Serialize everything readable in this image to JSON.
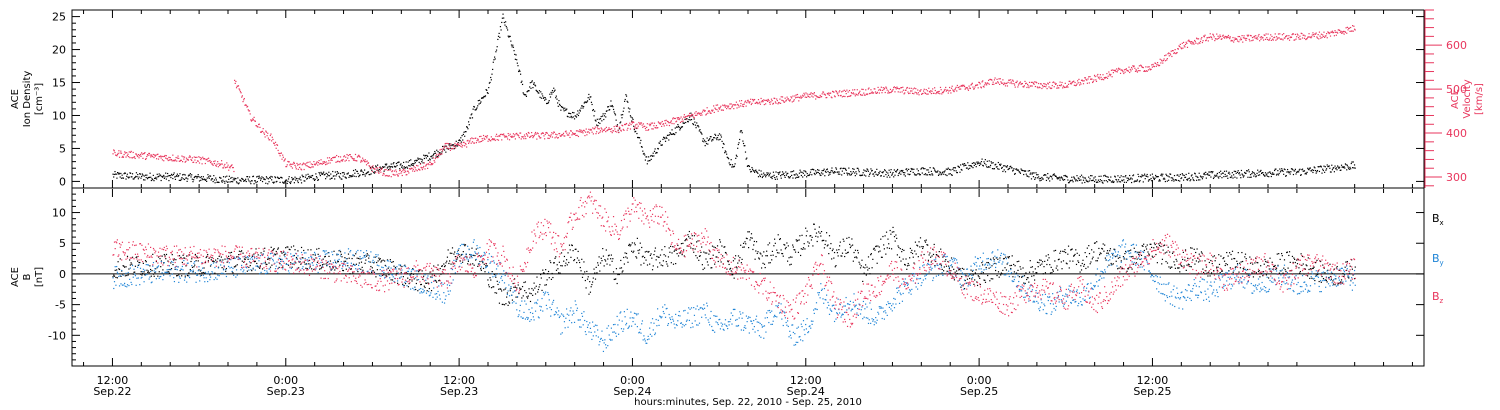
{
  "chart_data": [
    {
      "type": "scatter",
      "panel": "top",
      "ylabel_left": [
        "ACE",
        "Ion Density",
        "[cm⁻³]"
      ],
      "ylabel_right": [
        "ACE",
        "Velocity",
        "[km/s]"
      ],
      "ylim_left": [
        -1,
        26
      ],
      "ylim_right": [
        275,
        680
      ],
      "yticks_left": [
        "0",
        "5",
        "10",
        "15",
        "20",
        "25"
      ],
      "yticks_right": [
        "300",
        "400",
        "500",
        "600"
      ],
      "colors": {
        "density": "#000000",
        "velocity": "#e8365d"
      },
      "series": [
        {
          "axis": "left",
          "color": "#000000",
          "t": [
            0,
            1,
            2,
            3,
            4,
            5,
            6,
            7,
            7.6,
            8,
            9,
            10,
            12,
            13,
            14,
            15,
            16,
            16.5,
            17.5,
            18.3,
            19,
            20,
            21,
            22,
            23,
            24,
            24.5,
            25,
            26,
            27,
            28,
            28.5,
            29,
            30,
            30.5,
            31,
            32,
            33,
            33.5,
            34,
            34.5,
            35,
            35.5,
            36,
            37,
            38,
            39,
            40,
            41,
            42,
            42.5,
            43,
            43.5,
            44,
            45,
            46,
            48,
            50,
            52,
            54,
            56,
            58,
            60,
            62,
            64,
            66,
            68,
            70,
            70.5,
            71,
            72,
            74,
            76,
            78,
            80,
            82,
            84,
            86
          ],
          "y": [
            1,
            0.9,
            0.8,
            0.8,
            0.8,
            0.7,
            0.6,
            0.5,
            0.3,
            0.3,
            0.3,
            0.3,
            0.3,
            0.4,
            0.8,
            1,
            1,
            1.3,
            1.5,
            2,
            2.3,
            2.5,
            3,
            4,
            5,
            6,
            8,
            11,
            14,
            25,
            18,
            13,
            15,
            12,
            14,
            11,
            10,
            13,
            9,
            10,
            12,
            8,
            13,
            9,
            3,
            6,
            8,
            10,
            6,
            7,
            4,
            2,
            8,
            2,
            1,
            1,
            1.3,
            1.6,
            1.5,
            1.3,
            1.7,
            1.5,
            3,
            2,
            0.8,
            0.5,
            0.4,
            0.5,
            0.5,
            0.6,
            0.6,
            0.7,
            1,
            1.2,
            1.4,
            1.5,
            2,
            2.5
          ]
        },
        {
          "axis": "right",
          "color": "#e8365d",
          "t": [
            0,
            2,
            4,
            6,
            7.6,
            8.4,
            8.4,
            9,
            9.5,
            10,
            10.5,
            11,
            12,
            13,
            14,
            15,
            16,
            17,
            18,
            19,
            20,
            21,
            22,
            23,
            24,
            25,
            26,
            28,
            30,
            32,
            33,
            34,
            35,
            36,
            37,
            38,
            40,
            42,
            44,
            46,
            48,
            50,
            52,
            54,
            56,
            58,
            60,
            61,
            62,
            64,
            66,
            68,
            70,
            72,
            74,
            76,
            78,
            80,
            82,
            84,
            86
          ],
          "y": [
            355,
            350,
            345,
            340,
            330,
            320,
            520,
            480,
            440,
            420,
            400,
            390,
            330,
            325,
            330,
            340,
            345,
            345,
            320,
            310,
            310,
            320,
            330,
            370,
            370,
            385,
            390,
            395,
            395,
            400,
            405,
            410,
            410,
            420,
            415,
            420,
            440,
            460,
            470,
            475,
            485,
            490,
            495,
            500,
            495,
            500,
            510,
            520,
            515,
            510,
            510,
            525,
            545,
            550,
            600,
            620,
            615,
            620,
            620,
            625,
            640
          ]
        }
      ]
    },
    {
      "type": "scatter",
      "panel": "bottom",
      "ylabel": [
        "ACE",
        "B",
        "[nT]"
      ],
      "ylim": [
        -15,
        14
      ],
      "yticks": [
        "-10",
        "-5",
        "0",
        "5",
        "10"
      ],
      "colors": {
        "Bx": "#000000",
        "By": "#1f84d6",
        "Bz": "#e8365d"
      },
      "series": [
        {
          "name": "Bx",
          "color": "#000000",
          "t": [
            0,
            2,
            4,
            6,
            8,
            10,
            12,
            14,
            16,
            18,
            19,
            20,
            21,
            22,
            23,
            24,
            25,
            26,
            27,
            28,
            29,
            30,
            31,
            32,
            33,
            34,
            35,
            36,
            37,
            38,
            39,
            40,
            41,
            42,
            43,
            44,
            45,
            46,
            47,
            48,
            49,
            50,
            51,
            52,
            53,
            54,
            55,
            56,
            57,
            58,
            59,
            60,
            61,
            62,
            63,
            64,
            65,
            66,
            67,
            68,
            69,
            70,
            71,
            72,
            73,
            74,
            75,
            76,
            77,
            78,
            79,
            80,
            81,
            82,
            83,
            84,
            85,
            86
          ],
          "y": [
            1,
            1.5,
            1.5,
            1.5,
            2,
            2.5,
            3,
            2.5,
            2,
            1.5,
            1,
            0,
            -1,
            -1,
            2,
            4,
            3,
            0,
            -4,
            -2,
            -3,
            0,
            2,
            4,
            -2,
            3,
            0,
            5,
            2,
            3,
            3,
            6,
            2,
            4,
            1,
            6,
            2,
            5,
            3,
            6,
            7,
            3,
            5,
            0,
            4,
            6,
            2,
            5,
            3,
            1,
            -1,
            0,
            1,
            2,
            0,
            1,
            2,
            3,
            2,
            4,
            3,
            2,
            3,
            4,
            3,
            2,
            3,
            1,
            2,
            2,
            1,
            1,
            2,
            2,
            1,
            0,
            0,
            1
          ]
        },
        {
          "name": "By",
          "color": "#1f84d6",
          "t": [
            0,
            2,
            4,
            6,
            8,
            10,
            12,
            14,
            16,
            18,
            19,
            20,
            21,
            22,
            23,
            24,
            25,
            26,
            27,
            28,
            29,
            30,
            31,
            32,
            33,
            34,
            35,
            36,
            37,
            38,
            39,
            40,
            41,
            42,
            43,
            44,
            45,
            46,
            47,
            48,
            49,
            50,
            51,
            52,
            53,
            54,
            55,
            56,
            57,
            58,
            59,
            60,
            61,
            62,
            63,
            64,
            65,
            66,
            67,
            68,
            69,
            70,
            71,
            72,
            73,
            74,
            75,
            76,
            77,
            78,
            79,
            80,
            81,
            82,
            83,
            84,
            85,
            86
          ],
          "y": [
            -0.5,
            0,
            0.5,
            0.5,
            1,
            1.5,
            2,
            2,
            2.5,
            2,
            1,
            0,
            -1,
            -2,
            -3,
            3,
            4,
            2,
            0,
            -5,
            -7,
            -4,
            -8,
            -6,
            -9,
            -11,
            -8,
            -7,
            -10,
            -6,
            -8,
            -7,
            -6,
            -9,
            -7,
            -8,
            -9,
            -5,
            -10,
            -9,
            -3,
            -6,
            -4,
            -6,
            -7,
            -4,
            -2,
            0,
            1,
            2,
            -1,
            2,
            3,
            1,
            -2,
            -4,
            -5,
            -3,
            -4,
            -1,
            2,
            4,
            3,
            0,
            -3,
            -4,
            -2,
            -3,
            -1,
            0,
            -2,
            -1,
            0,
            -2,
            -1,
            -1,
            0,
            -1
          ]
        },
        {
          "name": "Bz",
          "color": "#e8365d",
          "t": [
            0,
            2,
            4,
            6,
            8,
            10,
            12,
            14,
            16,
            18,
            19,
            20,
            21,
            22,
            23,
            24,
            25,
            26,
            27,
            28,
            29,
            30,
            31,
            32,
            33,
            34,
            35,
            36,
            37,
            38,
            39,
            40,
            41,
            42,
            43,
            44,
            45,
            46,
            47,
            48,
            49,
            50,
            51,
            52,
            53,
            54,
            55,
            56,
            57,
            58,
            59,
            60,
            61,
            62,
            63,
            64,
            65,
            66,
            67,
            68,
            69,
            70,
            71,
            72,
            73,
            74,
            75,
            76,
            77,
            78,
            79,
            80,
            81,
            82,
            83,
            84,
            85,
            86
          ],
          "y": [
            4,
            3.5,
            3,
            3,
            3,
            2.5,
            2,
            1.5,
            0,
            -1,
            -1,
            -0.5,
            0.5,
            0,
            -1,
            2,
            1,
            4,
            3,
            -2,
            6,
            8,
            4,
            10,
            12,
            9,
            7,
            11,
            9,
            10,
            4,
            5,
            6,
            2,
            1,
            0,
            -2,
            -4,
            -6,
            -3,
            2,
            -5,
            -7,
            -3,
            -2,
            1,
            -2,
            2,
            3,
            1,
            -2,
            -3,
            -4,
            -5,
            -3,
            -2,
            -3,
            -4,
            -2,
            -5,
            -3,
            0,
            2,
            4,
            5,
            3,
            1,
            2,
            -1,
            0,
            1,
            2,
            -2,
            1,
            2,
            1,
            0,
            1
          ]
        }
      ]
    }
  ],
  "x_axis": {
    "tick_labels_top": [
      "12:00",
      "0:00",
      "12:00",
      "0:00",
      "12:00",
      "0:00",
      "12:00"
    ],
    "tick_labels_bottom": [
      "Sep.22",
      "Sep.23",
      "Sep.23",
      "Sep.24",
      "Sep.24",
      "Sep.25",
      "Sep.25"
    ],
    "tick_hours": [
      0,
      12,
      24,
      36,
      48,
      60,
      72
    ],
    "start_offset_hours": -2.8,
    "end_hours": 90.8,
    "title": "hours:minutes, Sep. 22, 2010 - Sep. 25, 2010"
  },
  "legend": {
    "Bx": {
      "base": "B",
      "sub": "x"
    },
    "By": {
      "base": "B",
      "sub": "y"
    },
    "Bz": {
      "base": "B",
      "sub": "z"
    }
  }
}
